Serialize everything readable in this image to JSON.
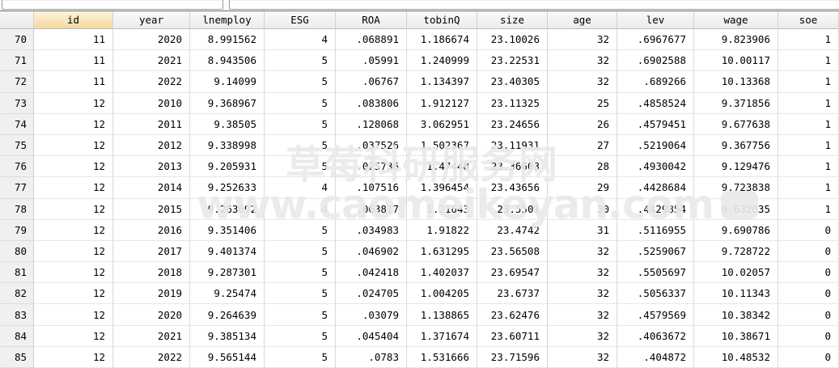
{
  "watermark": {
    "line1": "草莓科研服务网",
    "line2": "www.caomeikeyan.com"
  },
  "colors": {
    "selected_header": "#f4d89e",
    "header_bg": "#ececec",
    "gutter_bg": "#f0f0f0",
    "gridline": "#d9d9d9",
    "watermark": "#e9e9e9"
  },
  "table": {
    "selected_column": "id",
    "columns": [
      "id",
      "year",
      "lnemploy",
      "ESG",
      "ROA",
      "tobinQ",
      "size",
      "age",
      "lev",
      "wage",
      "soe"
    ],
    "rows": [
      {
        "n": "70",
        "cells": [
          "11",
          "2020",
          "8.991562",
          "4",
          ".068891",
          "1.186674",
          "23.10026",
          "32",
          ".6967677",
          "9.823906",
          "1"
        ]
      },
      {
        "n": "71",
        "cells": [
          "11",
          "2021",
          "8.943506",
          "5",
          ".05991",
          "1.240999",
          "23.22531",
          "32",
          ".6902588",
          "10.00117",
          "1"
        ]
      },
      {
        "n": "72",
        "cells": [
          "11",
          "2022",
          "9.14099",
          "5",
          ".06767",
          "1.134397",
          "23.40305",
          "32",
          ".689266",
          "10.13368",
          "1"
        ]
      },
      {
        "n": "73",
        "cells": [
          "12",
          "2010",
          "9.368967",
          "5",
          ".083806",
          "1.912127",
          "23.11325",
          "25",
          ".4858524",
          "9.371856",
          "1"
        ]
      },
      {
        "n": "74",
        "cells": [
          "12",
          "2011",
          "9.38505",
          "5",
          ".128068",
          "3.062951",
          "23.24656",
          "26",
          ".4579451",
          "9.677638",
          "1"
        ]
      },
      {
        "n": "75",
        "cells": [
          "12",
          "2012",
          "9.338998",
          "5",
          ".037526",
          "1.502367",
          "23.11931",
          "27",
          ".5219064",
          "9.367756",
          "1"
        ]
      },
      {
        "n": "76",
        "cells": [
          "12",
          "2013",
          "9.205931",
          "5",
          ".025736",
          "1.47448",
          "23.36603",
          "28",
          ".4930042",
          "9.129476",
          "1"
        ]
      },
      {
        "n": "77",
        "cells": [
          "12",
          "2014",
          "9.252633",
          "4",
          ".107516",
          "1.396454",
          "23.43656",
          "29",
          ".4428684",
          "9.723838",
          "1"
        ]
      },
      {
        "n": "78",
        "cells": [
          "12",
          "2015",
          "9.263692",
          "4",
          ".063817",
          "1.21643",
          "23.5501",
          "30",
          ".4429854",
          "9.632035",
          "1"
        ]
      },
      {
        "n": "79",
        "cells": [
          "12",
          "2016",
          "9.351406",
          "5",
          ".034983",
          "1.91822",
          "23.4742",
          "31",
          ".5116955",
          "9.690786",
          "0"
        ]
      },
      {
        "n": "80",
        "cells": [
          "12",
          "2017",
          "9.401374",
          "5",
          ".046902",
          "1.631295",
          "23.56508",
          "32",
          ".5259067",
          "9.728722",
          "0"
        ]
      },
      {
        "n": "81",
        "cells": [
          "12",
          "2018",
          "9.287301",
          "5",
          ".042418",
          "1.402037",
          "23.69547",
          "32",
          ".5505697",
          "10.02057",
          "0"
        ]
      },
      {
        "n": "82",
        "cells": [
          "12",
          "2019",
          "9.25474",
          "5",
          ".024705",
          "1.004205",
          "23.6737",
          "32",
          ".5056337",
          "10.11343",
          "0"
        ]
      },
      {
        "n": "83",
        "cells": [
          "12",
          "2020",
          "9.264639",
          "5",
          ".03079",
          "1.138865",
          "23.62476",
          "32",
          ".4579569",
          "10.38342",
          "0"
        ]
      },
      {
        "n": "84",
        "cells": [
          "12",
          "2021",
          "9.385134",
          "5",
          ".045404",
          "1.371674",
          "23.60711",
          "32",
          ".4063672",
          "10.38671",
          "0"
        ]
      },
      {
        "n": "85",
        "cells": [
          "12",
          "2022",
          "9.565144",
          "5",
          ".0783",
          "1.531666",
          "23.71596",
          "32",
          ".404872",
          "10.48532",
          "0"
        ]
      }
    ]
  }
}
